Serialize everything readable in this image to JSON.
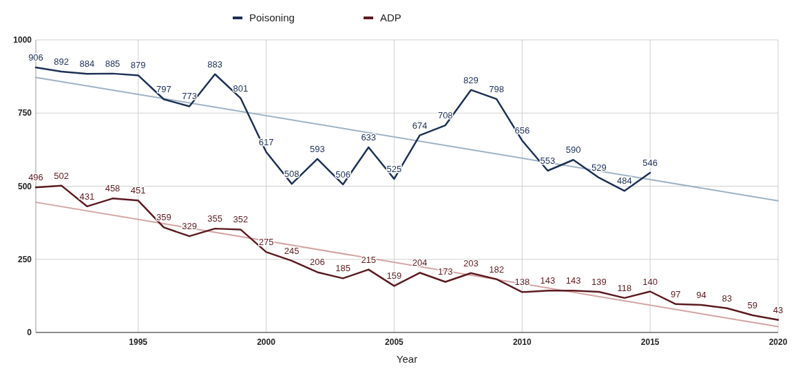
{
  "chart_data": {
    "type": "line",
    "xlabel": "Year",
    "xlim": [
      1991,
      2020
    ],
    "xticks": [
      1995,
      2000,
      2005,
      2010,
      2015,
      2020
    ],
    "ylim": [
      0,
      1000
    ],
    "yticks": [
      0,
      250,
      500,
      750,
      1000
    ],
    "grid": true,
    "legend": "top",
    "marker": "none",
    "line_style": "solid",
    "series": [
      {
        "name": "Poisoning",
        "color": "#1c2f55",
        "x": [
          1991,
          1992,
          1993,
          1994,
          1995,
          1996,
          1997,
          1998,
          1999,
          2000,
          2001,
          2002,
          2003,
          2004,
          2005,
          2006,
          2007,
          2008,
          2009,
          2010,
          2011,
          2012,
          2013,
          2014,
          2015
        ],
        "values": [
          906,
          892,
          884,
          885,
          879,
          797,
          773,
          883,
          801,
          617,
          508,
          593,
          506,
          633,
          525,
          674,
          708,
          829,
          798,
          656,
          553,
          590,
          529,
          484,
          546
        ],
        "value_labels": [
          "906",
          "892",
          "884",
          "885",
          "879",
          "797",
          "773",
          "883",
          "801",
          "617",
          "508",
          "593",
          "506",
          "633",
          "525",
          "674",
          "708",
          "829",
          "798",
          "656",
          "553",
          "590",
          "529",
          "484",
          "546"
        ]
      },
      {
        "name": "ADP",
        "color": "#5a1a1f",
        "x": [
          1991,
          1992,
          1993,
          1994,
          1995,
          1996,
          1997,
          1998,
          1999,
          2000,
          2001,
          2002,
          2003,
          2004,
          2005,
          2006,
          2007,
          2008,
          2009,
          2010,
          2011,
          2012,
          2013,
          2014,
          2015,
          2016,
          2017,
          2018,
          2019,
          2020
        ],
        "values": [
          496,
          502,
          431,
          458,
          451,
          359,
          329,
          355,
          352,
          275,
          245,
          206,
          185,
          215,
          159,
          204,
          173,
          203,
          182,
          138,
          143,
          143,
          139,
          118,
          140,
          97,
          94,
          83,
          59,
          43
        ],
        "value_labels": [
          "496",
          "502",
          "431",
          "458",
          "451",
          "359",
          "329",
          "355",
          "352",
          "275",
          "245",
          "206",
          "185",
          "215",
          "159",
          "204",
          "173",
          "203",
          "182",
          "138",
          "143",
          "143",
          "139",
          "118",
          "140",
          "97",
          "94",
          "83",
          "59",
          "43"
        ]
      },
      {
        "type": "line",
        "color": "#9fb1c6",
        "x": [
          1991,
          2020
        ],
        "values": [
          872,
          450
        ]
      },
      {
        "type": "line",
        "color": "#d3a3a3",
        "x": [
          1991,
          2020
        ],
        "values": [
          445,
          20
        ]
      }
    ]
  }
}
